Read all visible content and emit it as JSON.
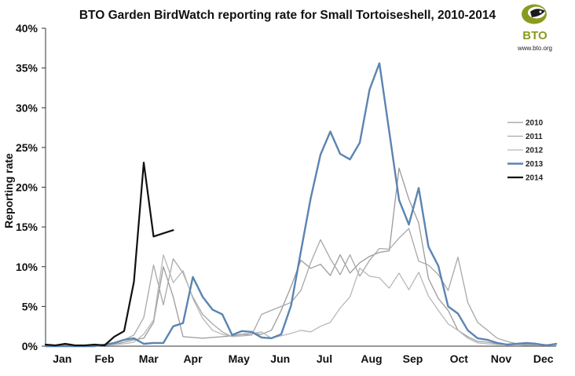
{
  "logo": {
    "text": "BTO",
    "url": "www.bto.org",
    "color": "#8a9a1e"
  },
  "chart_data": {
    "type": "line",
    "title": "BTO Garden BirdWatch reporting rate for Small Tortoiseshell, 2010-2014",
    "xlabel": "",
    "ylabel": "Reporting rate",
    "ylim": [
      0,
      40
    ],
    "yticks": [
      0,
      5,
      10,
      15,
      20,
      25,
      30,
      35,
      40
    ],
    "ytick_labels": [
      "0%",
      "5%",
      "10%",
      "15%",
      "20%",
      "25%",
      "30%",
      "35%",
      "40%"
    ],
    "x_unit": "week",
    "xlim": [
      1,
      53
    ],
    "categories": [
      "Jan",
      "Feb",
      "Mar",
      "Apr",
      "May",
      "Jun",
      "Jul",
      "Aug",
      "Sep",
      "Oct",
      "Nov",
      "Dec"
    ],
    "category_centers": [
      2.7,
      7.0,
      11.5,
      16.0,
      20.7,
      24.9,
      29.4,
      34.2,
      38.4,
      43.1,
      47.4,
      51.7
    ],
    "legend_position": "right",
    "series": [
      {
        "name": "2010",
        "color": "#9b9b9b",
        "width": 1.3,
        "x": [
          1,
          2,
          3,
          4,
          5,
          6,
          7,
          8,
          9,
          10,
          11,
          12,
          13,
          14,
          15,
          16,
          17,
          18,
          19,
          20,
          21,
          22,
          23,
          24,
          25,
          26,
          27,
          28,
          29,
          30,
          31,
          32,
          33,
          34,
          35,
          36,
          37,
          38,
          39,
          40,
          41,
          42,
          43,
          44,
          45,
          46,
          47,
          48,
          49,
          50,
          51,
          52,
          53
        ],
        "values": [
          0.1,
          0.1,
          0.2,
          0.1,
          0,
          0.1,
          0.1,
          0.2,
          0.5,
          0.8,
          1.0,
          3.0,
          10.0,
          6.2,
          1.2,
          1.1,
          1.0,
          1.1,
          1.2,
          1.3,
          1.5,
          1.6,
          1.5,
          2.0,
          4.5,
          7.5,
          10.8,
          9.8,
          10.3,
          8.9,
          11.5,
          9.2,
          10.5,
          11.3,
          11.8,
          12.0,
          22.4,
          18.5,
          15.5,
          8.5,
          6.0,
          4.5,
          2.0,
          1.2,
          0.6,
          0.5,
          0.3,
          0.2,
          0.2,
          0.2,
          0.1,
          0.1,
          0.1
        ]
      },
      {
        "name": "2011",
        "color": "#a8a8a8",
        "width": 1.3,
        "x": [
          1,
          2,
          3,
          4,
          5,
          6,
          7,
          8,
          9,
          10,
          11,
          12,
          13,
          14,
          15,
          16,
          17,
          18,
          19,
          20,
          21,
          22,
          23,
          24,
          25,
          26,
          27,
          28,
          29,
          30,
          31,
          32,
          33,
          34,
          35,
          36,
          37,
          38,
          39,
          40,
          41,
          42,
          43,
          44,
          45,
          46,
          47,
          48,
          49,
          50,
          51,
          52,
          53
        ],
        "values": [
          0.1,
          0.1,
          0.1,
          0.1,
          0.1,
          0.1,
          0.2,
          0.3,
          0.8,
          1.4,
          3.6,
          10.2,
          5.2,
          11.0,
          9.2,
          6.2,
          4.0,
          2.8,
          1.8,
          1.2,
          1.3,
          1.4,
          4.0,
          4.5,
          5.0,
          5.5,
          7.0,
          10.5,
          13.4,
          11.0,
          9.0,
          11.5,
          8.8,
          10.8,
          12.3,
          12.2,
          13.6,
          14.8,
          10.7,
          10.2,
          9.0,
          7.0,
          11.2,
          5.5,
          3.0,
          2.0,
          1.0,
          0.6,
          0.3,
          0.3,
          0.2,
          0.2,
          0.1
        ]
      },
      {
        "name": "2012",
        "color": "#b8b8b8",
        "width": 1.3,
        "x": [
          1,
          2,
          3,
          4,
          5,
          6,
          7,
          8,
          9,
          10,
          11,
          12,
          13,
          14,
          15,
          16,
          17,
          18,
          19,
          20,
          21,
          22,
          23,
          24,
          25,
          26,
          27,
          28,
          29,
          30,
          31,
          32,
          33,
          34,
          35,
          36,
          37,
          38,
          39,
          40,
          41,
          42,
          43,
          44,
          45,
          46,
          47,
          48,
          49,
          50,
          51,
          52,
          53
        ],
        "values": [
          0.1,
          0.1,
          0.1,
          0.1,
          0.1,
          0.2,
          0.2,
          0.2,
          0.3,
          0.5,
          1.5,
          3.3,
          11.5,
          8.0,
          9.5,
          6.0,
          3.5,
          2.0,
          1.5,
          1.2,
          1.3,
          1.6,
          1.8,
          1.0,
          1.3,
          1.6,
          2.0,
          1.8,
          2.5,
          3.0,
          4.8,
          6.2,
          9.8,
          8.8,
          8.6,
          7.3,
          9.2,
          7.1,
          9.3,
          6.3,
          4.5,
          2.8,
          2.0,
          1.0,
          0.4,
          0.3,
          0.2,
          0.2,
          0.2,
          0.1,
          0.1,
          0.1,
          0.1
        ]
      },
      {
        "name": "2013",
        "color": "#5b84b1",
        "width": 2.4,
        "x": [
          1,
          2,
          3,
          4,
          5,
          6,
          7,
          8,
          9,
          10,
          11,
          12,
          13,
          14,
          15,
          16,
          17,
          18,
          19,
          20,
          21,
          22,
          23,
          24,
          25,
          26,
          27,
          28,
          29,
          30,
          31,
          32,
          33,
          34,
          35,
          36,
          37,
          38,
          39,
          40,
          41,
          42,
          43,
          44,
          45,
          46,
          47,
          48,
          49,
          50,
          51,
          52,
          53
        ],
        "values": [
          0,
          0,
          0,
          0,
          0,
          0,
          0.2,
          0.4,
          0.8,
          1.0,
          0.3,
          0.4,
          0.4,
          2.5,
          2.9,
          8.7,
          6.2,
          4.6,
          4.0,
          1.4,
          1.9,
          1.8,
          1.1,
          1.0,
          1.5,
          5.1,
          11.9,
          18.6,
          24.1,
          27.0,
          24.2,
          23.5,
          25.6,
          32.3,
          35.6,
          27.0,
          18.4,
          15.3,
          19.9,
          12.5,
          10.1,
          5.0,
          4.1,
          2.0,
          1.0,
          0.8,
          0.4,
          0.2,
          0.3,
          0.4,
          0.3,
          0.1,
          0.3
        ]
      },
      {
        "name": "2014",
        "color": "#111111",
        "width": 2.2,
        "x": [
          1,
          2,
          3,
          4,
          5,
          6,
          7,
          8,
          9,
          10,
          11,
          12,
          13,
          14
        ],
        "values": [
          0.2,
          0.1,
          0.3,
          0.1,
          0.1,
          0.2,
          0.1,
          1.2,
          1.9,
          8.1,
          23.1,
          13.8,
          14.2,
          14.6
        ]
      }
    ]
  }
}
